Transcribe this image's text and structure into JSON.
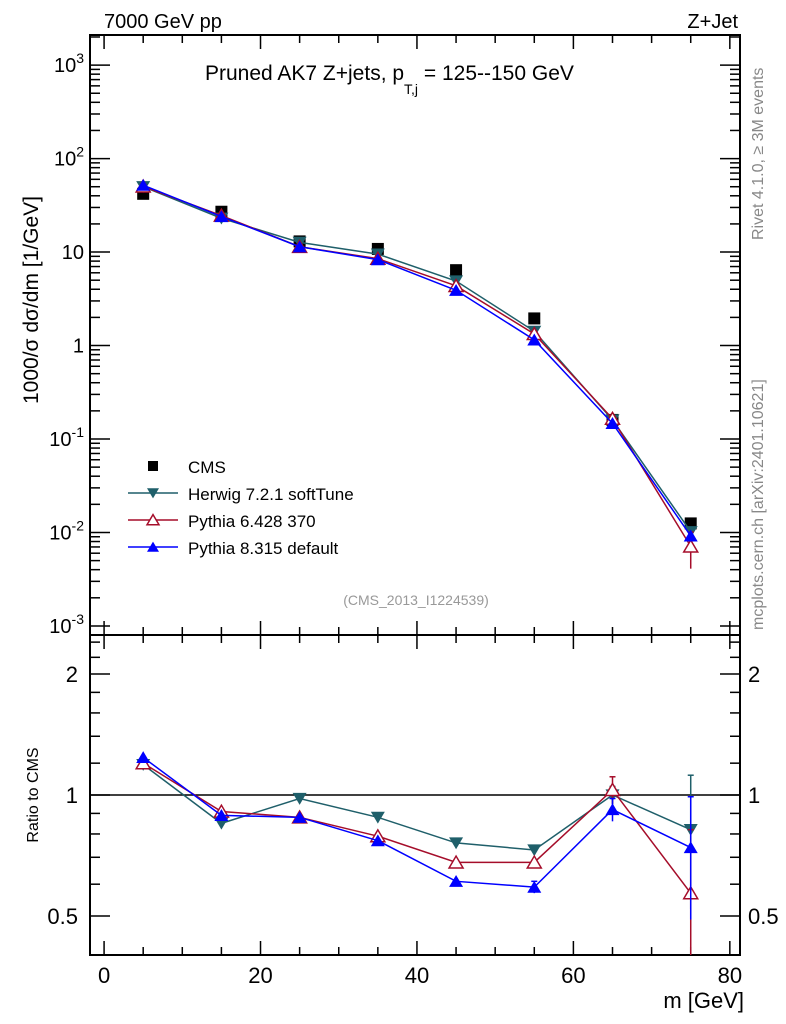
{
  "header": {
    "left": "7000 GeV pp",
    "right": "Z+Jet"
  },
  "side_labels": {
    "rivet": "Rivet 4.1.0, ≥ 3M events",
    "mcplots": "mcplots.cern.ch [arXiv:2401.10621]"
  },
  "chart_data": [
    {
      "type": "line",
      "title": "Pruned AK7 Z+jets, p_T,j = 125--150 GeV",
      "title_main": "Pruned AK7 Z+jets, p",
      "title_sub": "T,j",
      "title_rest": " = 125--150 GeV",
      "ylabel": "1000/σ  dσ/dm [1/GeV]",
      "yscale": "log",
      "ylim": [
        0.0008,
        2100
      ],
      "xlim": [
        -1.8,
        81.3
      ],
      "yticks": [
        {
          "v": 1000,
          "label": "10^3"
        },
        {
          "v": 100,
          "label": "10^2"
        },
        {
          "v": 10,
          "label": "10"
        },
        {
          "v": 1,
          "label": "1"
        },
        {
          "v": 0.1,
          "label": "10^-1"
        },
        {
          "v": 0.01,
          "label": "10^-2"
        },
        {
          "v": 0.001,
          "label": "10^-3"
        }
      ],
      "x": [
        5,
        15,
        25,
        35,
        45,
        55,
        65,
        75
      ],
      "series": [
        {
          "name": "CMS",
          "color": "#000000",
          "marker": "square",
          "values": [
            42,
            27,
            13,
            10.8,
            6.4,
            1.95,
            0.16,
            0.0125
          ]
        },
        {
          "name": "Herwig 7.2.1 softTune",
          "color": "#1f5f6a",
          "marker": "triangle-down",
          "values": [
            50,
            23,
            12.7,
            9.5,
            4.9,
            1.42,
            0.16,
            0.0102
          ]
        },
        {
          "name": "Pythia 6.428 370",
          "color": "#a50d2a",
          "marker": "triangle-up-open",
          "values": [
            50.4,
            24.6,
            11.4,
            8.5,
            4.35,
            1.33,
            0.165,
            0.0071
          ],
          "err": [
            0,
            0,
            0,
            0,
            0,
            0,
            0,
            0.003
          ]
        },
        {
          "name": "Pythia 8.315 default",
          "color": "#0000ff",
          "marker": "triangle-up",
          "values": [
            52,
            24,
            11.4,
            8.3,
            3.9,
            1.15,
            0.147,
            0.0092
          ]
        }
      ],
      "legend_position": "lower-left",
      "annotation": "(CMS_2013_I1224539)"
    },
    {
      "type": "line",
      "ylabel": "Ratio to CMS",
      "xlabel": "m [GeV]",
      "yscale": "log",
      "ylim": [
        0.4,
        2.5
      ],
      "xlim": [
        -1.8,
        81.3
      ],
      "yticks": [
        {
          "v": 2,
          "label": "2"
        },
        {
          "v": 1,
          "label": "1"
        },
        {
          "v": 0.5,
          "label": "0.5"
        }
      ],
      "xticks": [
        {
          "v": 0,
          "label": "0"
        },
        {
          "v": 20,
          "label": "20"
        },
        {
          "v": 40,
          "label": "40"
        },
        {
          "v": 60,
          "label": "60"
        },
        {
          "v": 80,
          "label": "80"
        }
      ],
      "x": [
        5,
        15,
        25,
        35,
        45,
        55,
        65,
        75
      ],
      "series": [
        {
          "name": "Herwig 7.2.1 softTune",
          "color": "#1f5f6a",
          "marker": "triangle-down",
          "values": [
            1.19,
            0.85,
            0.98,
            0.88,
            0.76,
            0.73,
            1.0,
            0.82
          ],
          "err": [
            0.01,
            0.01,
            0.01,
            0.01,
            0.01,
            0.01,
            0.05,
            0.3
          ]
        },
        {
          "name": "Pythia 6.428 370",
          "color": "#a50d2a",
          "marker": "triangle-up-open",
          "values": [
            1.2,
            0.91,
            0.88,
            0.79,
            0.68,
            0.68,
            1.03,
            0.57
          ],
          "err": [
            0.01,
            0.01,
            0.01,
            0.01,
            0.01,
            0.01,
            0.08,
            0.25
          ]
        },
        {
          "name": "Pythia 8.315 default",
          "color": "#0000ff",
          "marker": "triangle-up",
          "values": [
            1.24,
            0.89,
            0.88,
            0.77,
            0.61,
            0.59,
            0.92,
            0.74
          ],
          "err": [
            0.01,
            0.01,
            0.01,
            0.01,
            0.01,
            0.02,
            0.06,
            0.25
          ]
        }
      ]
    }
  ]
}
